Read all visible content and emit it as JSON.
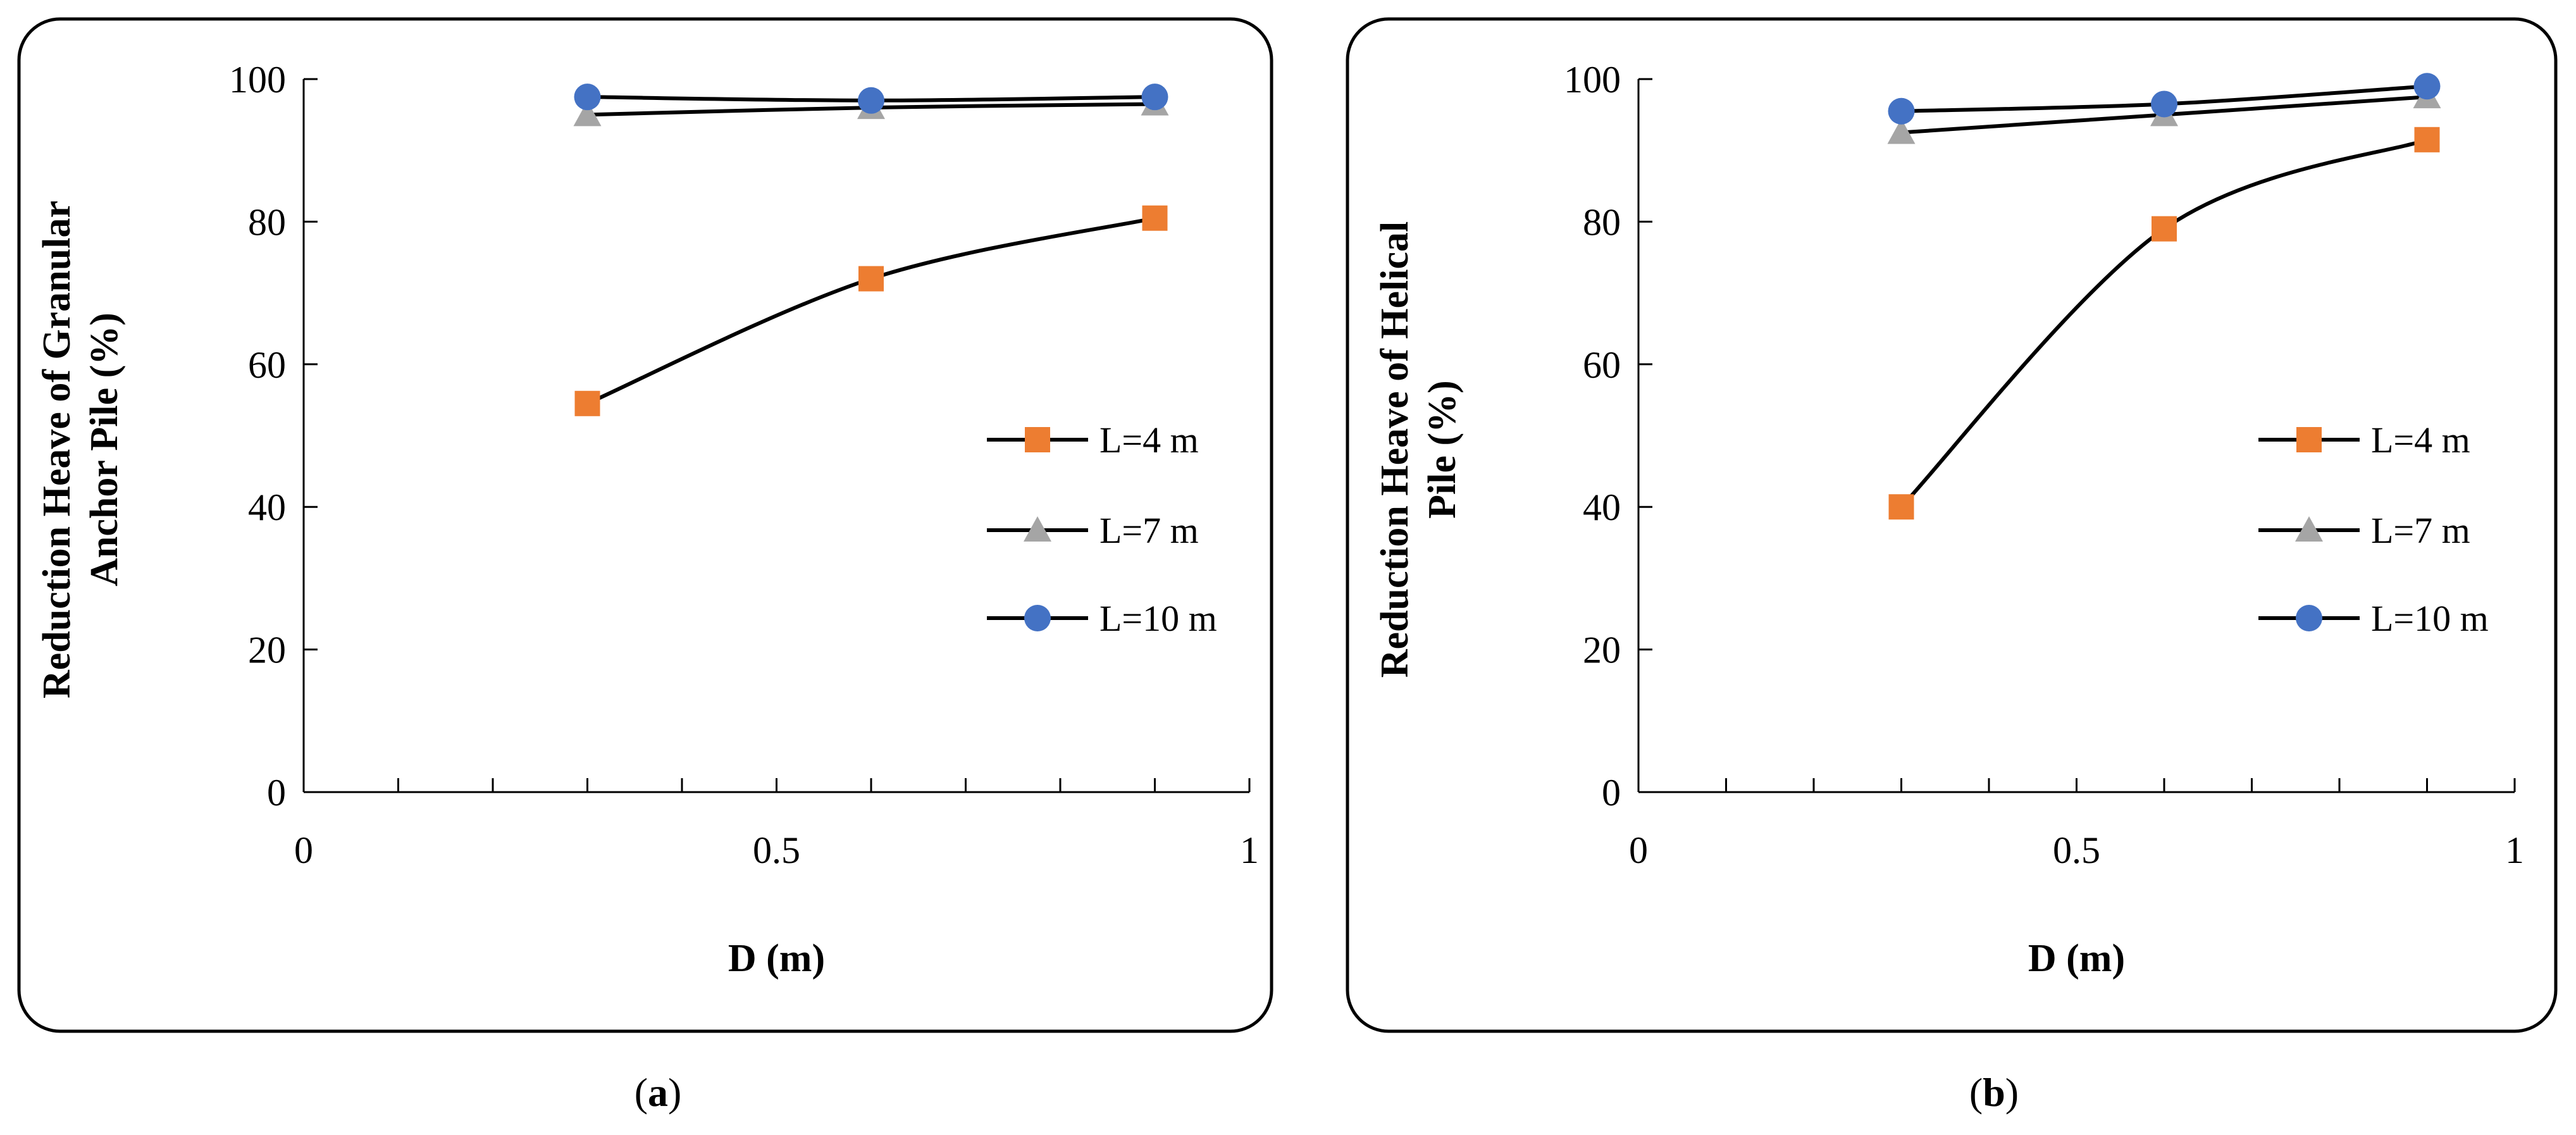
{
  "colors": {
    "l4": "#ED7D31",
    "l7": "#A5A5A5",
    "l10": "#4472C4",
    "line": "#000000",
    "frame": "#000000"
  },
  "captions": {
    "a": "a",
    "b": "b"
  },
  "chart_data": [
    {
      "type": "line",
      "panel": "a",
      "title": "",
      "xlabel": "D (m)",
      "ylabel_line1": "Reduction Heave of Granular",
      "ylabel_line2": "Anchor Pile (%)",
      "xlim": [
        0,
        1
      ],
      "ylim": [
        0,
        100
      ],
      "xticks": [
        "0",
        "0.5",
        "1"
      ],
      "yticks": [
        "0",
        "20",
        "40",
        "60",
        "80",
        "100"
      ],
      "legend_position": "right",
      "x": [
        0.3,
        0.6,
        0.9
      ],
      "series": [
        {
          "name": "L=4 m",
          "marker": "square",
          "color": "#ED7D31",
          "values": [
            54.5,
            72.0,
            80.5
          ]
        },
        {
          "name": "L=7 m",
          "marker": "triangle",
          "color": "#A5A5A5",
          "values": [
            95.0,
            96.0,
            96.5
          ]
        },
        {
          "name": "L=10 m",
          "marker": "circle",
          "color": "#4472C4",
          "values": [
            97.5,
            97.0,
            97.5
          ]
        }
      ]
    },
    {
      "type": "line",
      "panel": "b",
      "title": "",
      "xlabel": "D (m)",
      "ylabel_line1": "Reduction Heave of Helical",
      "ylabel_line2": "Pile (%)",
      "xlim": [
        0,
        1
      ],
      "ylim": [
        0,
        100
      ],
      "xticks": [
        "0",
        "0.5",
        "1"
      ],
      "yticks": [
        "0",
        "20",
        "40",
        "60",
        "80",
        "100"
      ],
      "legend_position": "right",
      "x": [
        0.3,
        0.6,
        0.9
      ],
      "series": [
        {
          "name": "L=4 m",
          "marker": "square",
          "color": "#ED7D31",
          "values": [
            40.0,
            79.0,
            91.5
          ]
        },
        {
          "name": "L=7 m",
          "marker": "triangle",
          "color": "#A5A5A5",
          "values": [
            92.5,
            95.0,
            97.5
          ]
        },
        {
          "name": "L=10 m",
          "marker": "circle",
          "color": "#4472C4",
          "values": [
            95.5,
            96.5,
            99.0
          ]
        }
      ]
    }
  ]
}
